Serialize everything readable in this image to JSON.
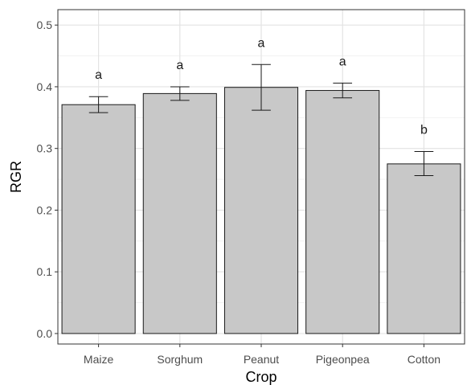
{
  "chart_data": {
    "type": "bar",
    "xlabel": "Crop",
    "ylabel": "RGR",
    "categories": [
      "Maize",
      "Sorghum",
      "Peanut",
      "Pigeonpea",
      "Cotton"
    ],
    "values": [
      0.371,
      0.389,
      0.399,
      0.394,
      0.275
    ],
    "error_low": [
      0.358,
      0.378,
      0.362,
      0.382,
      0.256
    ],
    "error_high": [
      0.384,
      0.4,
      0.436,
      0.406,
      0.295
    ],
    "significance_labels": [
      "a",
      "a",
      "a",
      "a",
      "b"
    ],
    "ylim": [
      -0.017,
      0.525
    ],
    "yticks": [
      0.0,
      0.1,
      0.2,
      0.3,
      0.4,
      0.5
    ],
    "ytick_labels": [
      "0.0",
      "0.1",
      "0.2",
      "0.3",
      "0.4",
      "0.5"
    ],
    "grid": true,
    "bar_color": "#c8c8c8",
    "bar_edge_color": "#1a1a1a"
  }
}
